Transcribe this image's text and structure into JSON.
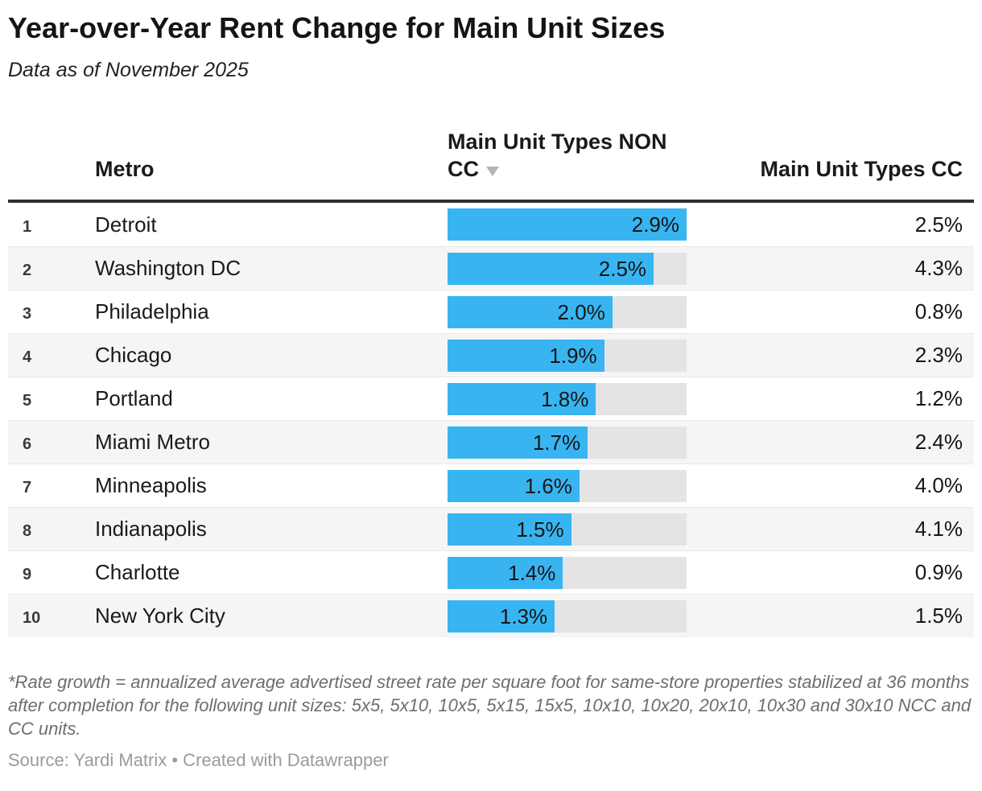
{
  "title": "Year-over-Year Rent Change for Main Unit Sizes",
  "subtitle": "Data as of November 2025",
  "table": {
    "bar_max": 2.9,
    "columns": {
      "metro": "Metro",
      "non_cc_line1": "Main Unit Types NON",
      "non_cc_line2": "CC",
      "cc": "Main Unit Types CC"
    },
    "rows": [
      {
        "rank": "1",
        "metro": "Detroit",
        "non_cc_value": 2.9,
        "non_cc_label": "2.9%",
        "cc_label": "2.5%"
      },
      {
        "rank": "2",
        "metro": "Washington DC",
        "non_cc_value": 2.5,
        "non_cc_label": "2.5%",
        "cc_label": "4.3%"
      },
      {
        "rank": "3",
        "metro": "Philadelphia",
        "non_cc_value": 2.0,
        "non_cc_label": "2.0%",
        "cc_label": "0.8%"
      },
      {
        "rank": "4",
        "metro": "Chicago",
        "non_cc_value": 1.9,
        "non_cc_label": "1.9%",
        "cc_label": "2.3%"
      },
      {
        "rank": "5",
        "metro": "Portland",
        "non_cc_value": 1.8,
        "non_cc_label": "1.8%",
        "cc_label": "1.2%"
      },
      {
        "rank": "6",
        "metro": "Miami Metro",
        "non_cc_value": 1.7,
        "non_cc_label": "1.7%",
        "cc_label": "2.4%"
      },
      {
        "rank": "7",
        "metro": "Minneapolis",
        "non_cc_value": 1.6,
        "non_cc_label": "1.6%",
        "cc_label": "4.0%"
      },
      {
        "rank": "8",
        "metro": "Indianapolis",
        "non_cc_value": 1.5,
        "non_cc_label": "1.5%",
        "cc_label": "4.1%"
      },
      {
        "rank": "9",
        "metro": "Charlotte",
        "non_cc_value": 1.4,
        "non_cc_label": "1.4%",
        "cc_label": "0.9%"
      },
      {
        "rank": "10",
        "metro": "New York City",
        "non_cc_value": 1.3,
        "non_cc_label": "1.3%",
        "cc_label": "1.5%"
      }
    ]
  },
  "chart_data": {
    "type": "bar",
    "orientation": "horizontal",
    "title": "Year-over-Year Rent Change for Main Unit Sizes",
    "subtitle": "Data as of November 2025",
    "categories": [
      "Detroit",
      "Washington DC",
      "Philadelphia",
      "Chicago",
      "Portland",
      "Miami Metro",
      "Minneapolis",
      "Indianapolis",
      "Charlotte",
      "New York City"
    ],
    "series": [
      {
        "name": "Main Unit Types NON CC",
        "values": [
          2.9,
          2.5,
          2.0,
          1.9,
          1.8,
          1.7,
          1.6,
          1.5,
          1.4,
          1.3
        ],
        "rendered_as": "bar"
      },
      {
        "name": "Main Unit Types CC",
        "values": [
          2.5,
          4.3,
          0.8,
          2.3,
          1.2,
          2.4,
          4.0,
          4.1,
          0.9,
          1.5
        ],
        "rendered_as": "number"
      }
    ],
    "unit": "%",
    "xlim": [
      0,
      2.9
    ],
    "sorted_by": "Main Unit Types NON CC descending",
    "legend_position": "none",
    "grid": false
  },
  "colors": {
    "bar_fill": "#38b5f1",
    "bar_track": "#e4e4e4",
    "zebra_row": "#f5f5f5",
    "header_rule": "#2f2f2f",
    "sort_arrow": "#b5b5b5",
    "footnote_text": "#6e6e6e",
    "source_text": "#9b9b9b"
  },
  "footnote": "*Rate growth = annualized average advertised street rate per square foot for same-store properties stabilized at 36 months after completion for the following unit sizes: 5x5, 5x10, 10x5, 5x15, 15x5, 10x10, 10x20, 20x10, 10x30 and 30x10 NCC and CC units.",
  "source": "Source: Yardi Matrix • Created with Datawrapper"
}
